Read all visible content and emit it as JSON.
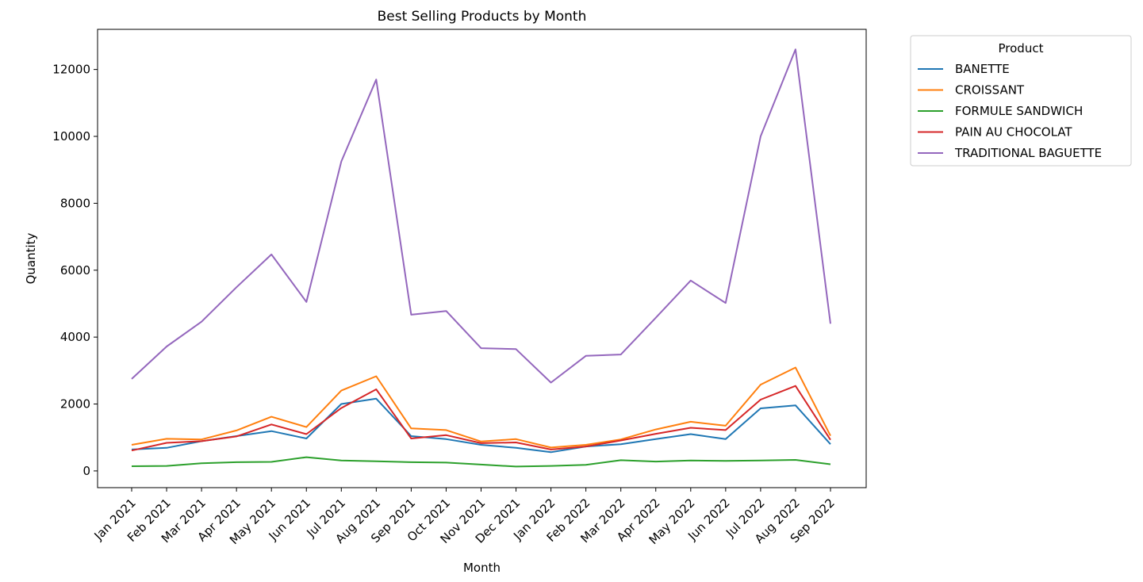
{
  "chart_data": {
    "type": "line",
    "title": "Best Selling Products by Month",
    "xlabel": "Month",
    "ylabel": "Quantity",
    "ylim": [
      -500,
      13200
    ],
    "yticks": [
      0,
      2000,
      4000,
      6000,
      8000,
      10000,
      12000
    ],
    "grid": false,
    "legend": {
      "title": "Product",
      "placement": "outside-top-right"
    },
    "categories": [
      "Jan 2021",
      "Feb 2021",
      "Mar 2021",
      "Apr 2021",
      "May 2021",
      "Jun 2021",
      "Jul 2021",
      "Aug 2021",
      "Sep 2021",
      "Oct 2021",
      "Nov 2021",
      "Dec 2021",
      "Jan 2022",
      "Feb 2022",
      "Mar 2022",
      "Apr 2022",
      "May 2022",
      "Jun 2022",
      "Jul 2022",
      "Aug 2022",
      "Sep 2022"
    ],
    "series": [
      {
        "name": "BANETTE",
        "color": "#1f77b4",
        "values": [
          640,
          690,
          890,
          1040,
          1190,
          970,
          2000,
          2160,
          1040,
          950,
          780,
          690,
          560,
          730,
          800,
          950,
          1100,
          950,
          1870,
          1960,
          800
        ]
      },
      {
        "name": "CROISSANT",
        "color": "#ff7f0e",
        "values": [
          780,
          960,
          940,
          1210,
          1620,
          1310,
          2400,
          2830,
          1270,
          1220,
          880,
          950,
          700,
          780,
          940,
          1240,
          1470,
          1350,
          2580,
          3090,
          1050
        ]
      },
      {
        "name": "FORMULE SANDWICH",
        "color": "#2ca02c",
        "values": [
          140,
          150,
          230,
          260,
          270,
          410,
          310,
          290,
          260,
          250,
          190,
          130,
          150,
          180,
          320,
          280,
          310,
          300,
          310,
          330,
          200
        ]
      },
      {
        "name": "PAIN AU CHOCOLAT",
        "color": "#d62728",
        "values": [
          610,
          840,
          890,
          1030,
          1390,
          1100,
          1880,
          2440,
          970,
          1070,
          830,
          850,
          640,
          730,
          910,
          1110,
          1290,
          1220,
          2130,
          2540,
          930
        ]
      },
      {
        "name": "TRADITIONAL BAGUETTE",
        "color": "#9467bd",
        "values": [
          2750,
          3720,
          4460,
          5490,
          6470,
          5050,
          9250,
          11700,
          4670,
          4780,
          3670,
          3640,
          2640,
          3440,
          3480,
          4580,
          5690,
          5020,
          10000,
          12600,
          4400
        ]
      }
    ]
  }
}
